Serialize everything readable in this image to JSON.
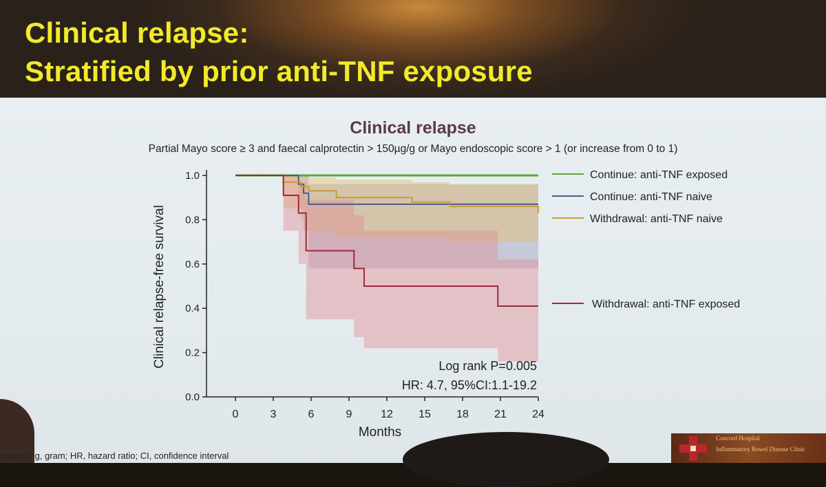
{
  "slide": {
    "title_line1": "Clinical relapse:",
    "title_line2": "Stratified by prior anti-TNF exposure",
    "footnote": "ograms; g, gram; HR, hazard ratio; CI, confidence interval",
    "logo_line1": "Concord Hospital",
    "logo_line2": "Inflammatory Bowel Disease Clinic"
  },
  "chart_data": {
    "type": "line",
    "title": "Clinical relapse",
    "subtitle": "Partial Mayo score ≥ 3 and faecal calprotectin > 150µg/g or Mayo endoscopic score > 1 (or increase from 0 to 1)",
    "xlabel": "Months",
    "ylabel": "Clinical relapse-free survival",
    "xlim": [
      0,
      24
    ],
    "ylim": [
      0,
      1.0
    ],
    "xticks": [
      0,
      3,
      6,
      9,
      12,
      15,
      18,
      21,
      24
    ],
    "xtick_labels": [
      "0",
      "3",
      "6",
      "9",
      "12",
      "15",
      "18",
      "21",
      "24"
    ],
    "yticks": [
      0,
      0.2,
      0.4,
      0.6,
      0.8,
      1.0
    ],
    "ytick_labels": [
      "0.0",
      "0.2",
      "0.4",
      "0.6",
      "0.8",
      "1.0"
    ],
    "legend_position": "right",
    "annotations": [
      "Log rank P=0.005",
      "HR: 4.7, 95%CI:1.1-19.2"
    ],
    "series": [
      {
        "name": "Continue: anti-TNF exposed",
        "color": "#5aa83c",
        "x": [
          0,
          24
        ],
        "y": [
          1.0,
          1.0
        ]
      },
      {
        "name": "Continue: anti-TNF naive",
        "color": "#4a5a8a",
        "band_color": "#9a9ab8",
        "x": [
          0,
          5,
          5.4,
          5.8,
          24
        ],
        "y": [
          1.0,
          0.96,
          0.92,
          0.87,
          0.87
        ],
        "ci_lower": [
          1.0,
          0.85,
          0.75,
          0.58,
          0.58
        ],
        "ci_upper": [
          1.0,
          1.0,
          1.0,
          0.96,
          0.96
        ]
      },
      {
        "name": "Withdrawal: anti-TNF naive",
        "color": "#c89a3a",
        "band_color": "#e6bd6a",
        "x": [
          0,
          3.8,
          5.2,
          5.8,
          8,
          14,
          17,
          24
        ],
        "y": [
          1.0,
          0.97,
          0.95,
          0.93,
          0.9,
          0.88,
          0.86,
          0.83
        ],
        "ci_lower": [
          1.0,
          0.85,
          0.8,
          0.75,
          0.72,
          0.72,
          0.7,
          0.65
        ],
        "ci_upper": [
          1.0,
          1.0,
          1.0,
          0.99,
          0.98,
          0.97,
          0.96,
          0.92
        ]
      },
      {
        "name": "Withdrawal: anti-TNF exposed",
        "color": "#a0283a",
        "band_color": "#e08a92",
        "x": [
          0,
          3.8,
          5,
          5.6,
          9.4,
          10.2,
          20.8,
          24
        ],
        "y": [
          1.0,
          0.91,
          0.83,
          0.66,
          0.58,
          0.5,
          0.41,
          0.41
        ],
        "ci_lower": [
          1.0,
          0.75,
          0.6,
          0.35,
          0.27,
          0.22,
          0.16,
          0.16
        ],
        "ci_upper": [
          1.0,
          1.0,
          0.97,
          0.89,
          0.82,
          0.75,
          0.62,
          0.62
        ]
      }
    ]
  }
}
